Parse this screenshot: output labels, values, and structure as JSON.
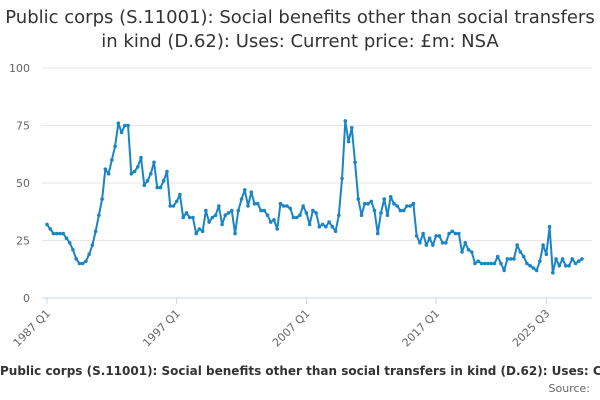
{
  "chart_data": {
    "type": "line",
    "title": "Public corps (S.11001): Social benefits other than social transfers in kind (D.62): Uses: Current price: £m: NSA",
    "series_name": "Public corps (S.11001): Social benefits other than social transfers in kind (D.62): Uses: Current price: £m: NSA",
    "xlabel": "",
    "ylabel": "",
    "ylim": [
      0,
      100
    ],
    "y_ticks": [
      0,
      25,
      50,
      75,
      100
    ],
    "x_tick_labels": [
      "1987 Q1",
      "1997 Q1",
      "2007 Q1",
      "2017 Q1",
      "2025 Q3"
    ],
    "x_tick_index": [
      0,
      40,
      80,
      120,
      154
    ],
    "values": [
      32,
      30,
      28,
      28,
      28,
      28,
      26,
      24,
      21,
      17,
      15,
      15,
      16,
      19,
      23,
      29,
      36,
      43,
      56,
      54,
      60,
      66,
      76,
      72,
      75,
      75,
      54,
      55,
      57,
      61,
      49,
      51,
      54,
      59,
      48,
      48,
      51,
      55,
      40,
      40,
      42,
      45,
      35,
      37,
      35,
      35,
      28,
      30,
      29,
      38,
      33,
      35,
      36,
      40,
      32,
      36,
      37,
      38,
      28,
      38,
      43,
      47,
      40,
      46,
      41,
      41,
      38,
      38,
      36,
      33,
      34,
      30,
      41,
      40,
      40,
      39,
      35,
      35,
      36,
      40,
      37,
      32,
      38,
      37,
      31,
      32,
      31,
      33,
      31,
      29,
      36,
      52,
      77,
      68,
      74,
      59,
      43,
      36,
      41,
      41,
      42,
      38,
      28,
      37,
      43,
      36,
      44,
      41,
      40,
      38,
      38,
      40,
      40,
      41,
      27,
      24,
      28,
      23,
      26,
      23,
      27,
      27,
      24,
      24,
      28,
      29,
      28,
      28,
      20,
      24,
      21,
      20,
      15,
      16,
      15,
      15,
      15,
      15,
      15,
      18,
      15,
      12,
      17,
      17,
      17,
      23,
      20,
      18,
      15,
      14,
      13,
      12,
      16,
      23,
      19,
      31,
      11,
      17,
      14,
      17,
      14,
      14,
      17,
      15,
      16,
      17
    ],
    "color": "#1a85c5",
    "credit": "Source:"
  }
}
